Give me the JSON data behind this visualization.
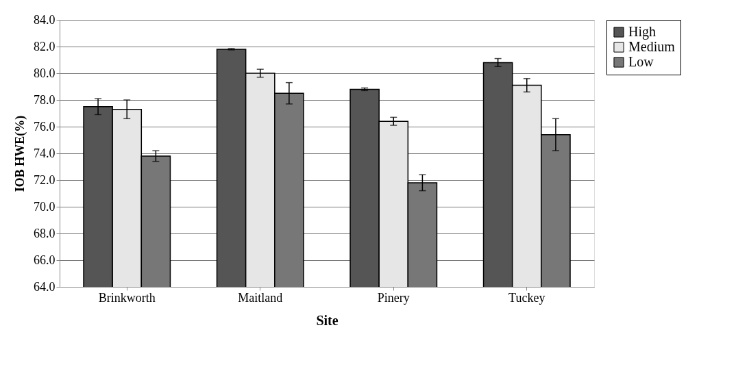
{
  "chart_data": {
    "type": "bar",
    "xlabel": "Site",
    "ylabel": "IOB HWE(%)",
    "categories": [
      "Brinkworth",
      "Maitland",
      "Pinery",
      "Tuckey"
    ],
    "series": [
      {
        "name": "High",
        "color": "#555555",
        "values": [
          77.5,
          81.8,
          78.8,
          80.8
        ],
        "errors": [
          0.6,
          0.05,
          0.1,
          0.3
        ]
      },
      {
        "name": "Medium",
        "color": "#e6e6e6",
        "values": [
          77.3,
          80.0,
          76.4,
          79.1
        ],
        "errors": [
          0.7,
          0.3,
          0.3,
          0.5
        ]
      },
      {
        "name": "Low",
        "color": "#777777",
        "values": [
          73.8,
          78.5,
          71.8,
          75.4
        ],
        "errors": [
          0.4,
          0.8,
          0.6,
          1.2
        ]
      }
    ],
    "ylim": [
      64,
      84
    ],
    "yticks": [
      {
        "value": 64,
        "label": "64.0"
      },
      {
        "value": 66,
        "label": "66.0"
      },
      {
        "value": 68,
        "label": "68.0"
      },
      {
        "value": 70,
        "label": "70.0"
      },
      {
        "value": 72,
        "label": "72.0"
      },
      {
        "value": 74,
        "label": "74.0"
      },
      {
        "value": 76,
        "label": "76.0"
      },
      {
        "value": 78,
        "label": "78.0"
      },
      {
        "value": 80,
        "label": "80.0"
      },
      {
        "value": 82,
        "label": "82.0"
      },
      {
        "value": 84,
        "label": "84.0"
      }
    ],
    "grid": "y",
    "legend": "right"
  }
}
